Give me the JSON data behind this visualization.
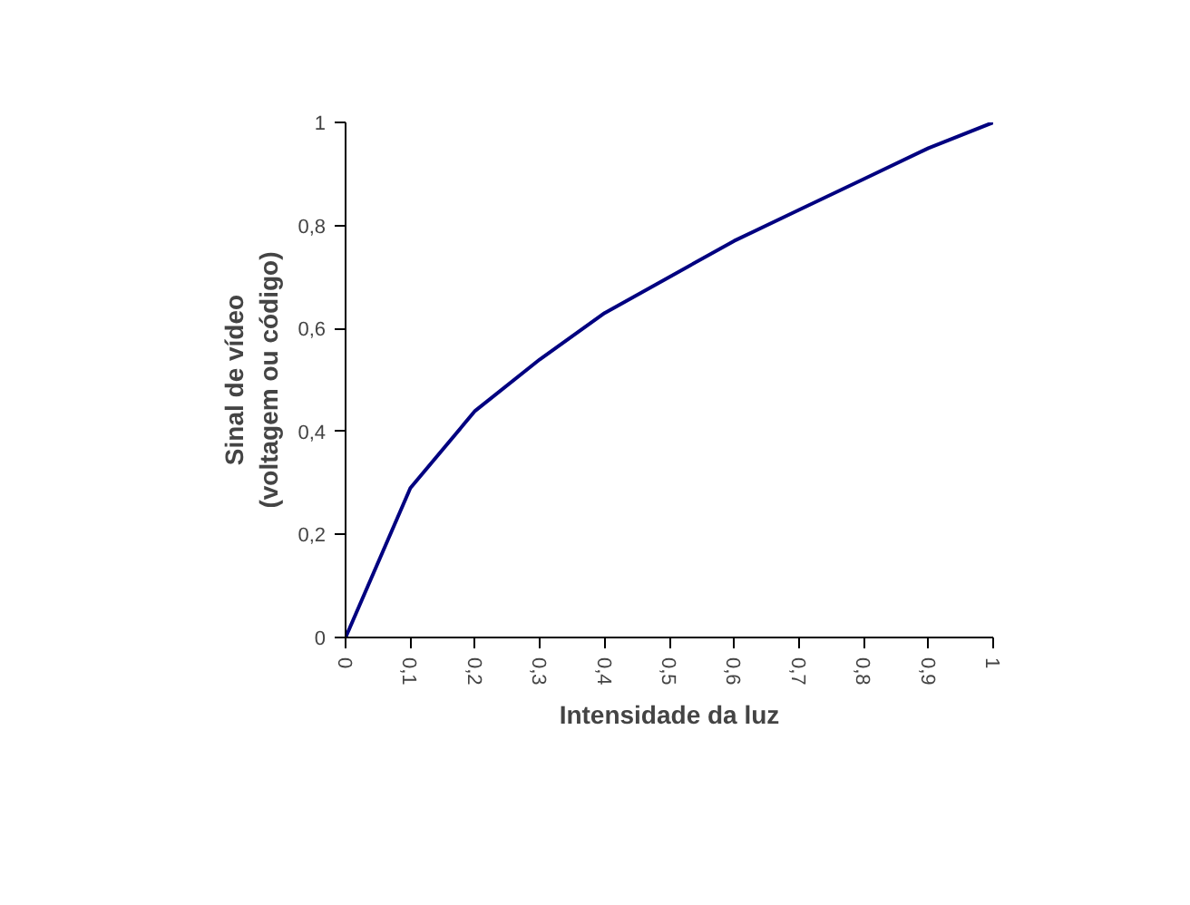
{
  "chart_data": {
    "type": "line",
    "xlabel": "Intensidade da luz",
    "ylabel": "Sinal de vídeo\n(voltagem ou código)",
    "x": [
      0,
      0.1,
      0.2,
      0.3,
      0.4,
      0.5,
      0.6,
      0.7,
      0.8,
      0.9,
      1
    ],
    "series": [
      {
        "color": "#000080",
        "values": [
          0,
          0.29,
          0.44,
          0.54,
          0.63,
          0.7,
          0.77,
          0.83,
          0.89,
          0.95,
          1
        ]
      }
    ],
    "xlim": [
      0,
      1
    ],
    "ylim": [
      0,
      1
    ],
    "xticks": [
      0,
      {
        "value": 0.1,
        "label": "0,1"
      },
      {
        "value": 0.2,
        "label": "0,2"
      },
      {
        "value": 0.3,
        "label": "0,3"
      },
      {
        "value": 0.4,
        "label": "0,4"
      },
      {
        "value": 0.5,
        "label": "0,5"
      },
      {
        "value": 0.6,
        "label": "0,6"
      },
      {
        "value": 0.7,
        "label": "0,7"
      },
      {
        "value": 0.8,
        "label": "0,8"
      },
      {
        "value": 0.9,
        "label": "0,9"
      },
      1
    ],
    "yticks": [
      0,
      {
        "value": 0.2,
        "label": "0,2"
      },
      {
        "value": 0.4,
        "label": "0,4"
      },
      {
        "value": 0.6,
        "label": "0,6"
      },
      {
        "value": 0.8,
        "label": "0,8"
      },
      1
    ],
    "grid": false,
    "marker": "none",
    "line_style": "solid"
  }
}
